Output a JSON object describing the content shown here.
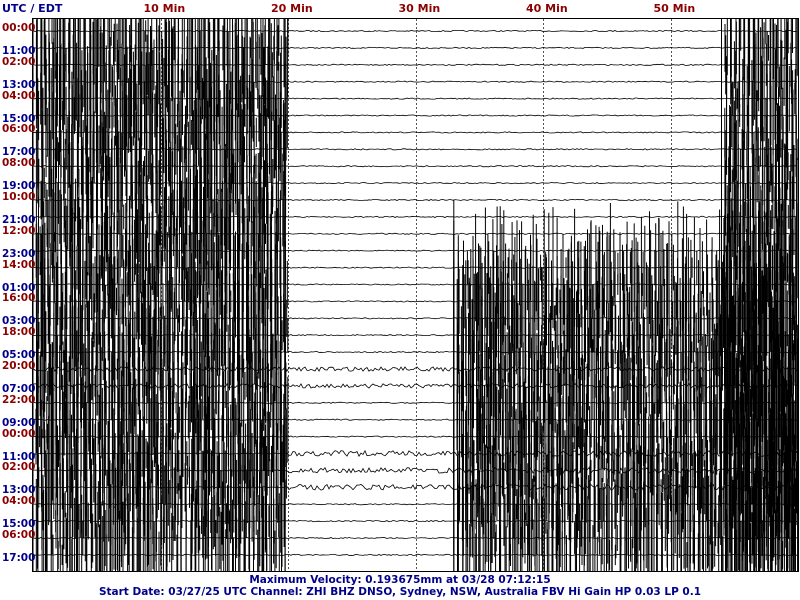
{
  "header": {
    "timezone_label": "UTC / EDT",
    "minute_labels": [
      "10 Min",
      "20 Min",
      "30 Min",
      "40 Min",
      "50 Min"
    ]
  },
  "colors": {
    "trace": "#000000",
    "utc_text": "#8b0000",
    "local_text": "#00008b",
    "footer_text": "#00008b",
    "grid": "#555555",
    "frame": "#000000"
  },
  "time_labels": [
    {
      "utc": "00:00",
      "local": "11:00"
    },
    {
      "utc": "02:00",
      "local": "13:00"
    },
    {
      "utc": "04:00",
      "local": "15:00"
    },
    {
      "utc": "06:00",
      "local": "17:00"
    },
    {
      "utc": "08:00",
      "local": "19:00"
    },
    {
      "utc": "10:00",
      "local": "21:00"
    },
    {
      "utc": "12:00",
      "local": "23:00"
    },
    {
      "utc": "14:00",
      "local": "01:00"
    },
    {
      "utc": "16:00",
      "local": "03:00"
    },
    {
      "utc": "18:00",
      "local": "05:00"
    },
    {
      "utc": "20:00",
      "local": "07:00"
    },
    {
      "utc": "22:00",
      "local": "09:00"
    },
    {
      "utc": "00:00",
      "local": "11:00"
    },
    {
      "utc": "02:00",
      "local": "13:00"
    },
    {
      "utc": "04:00",
      "local": "15:00"
    },
    {
      "utc": "06:00",
      "local": "17:00"
    }
  ],
  "footer": {
    "line1": "Maximum Velocity: 0.193675mm at 03/28 07:12:15",
    "line2": "Start Date: 03/27/25 UTC Channel: ZHI  BHZ  DNSO, Sydney, NSW, Australia  FBV Hi Gain HP 0.03  LP 0.1"
  },
  "chart_data": {
    "type": "line",
    "description": "Helicorder seismogram: 32 hourly traces, 60 minutes per trace",
    "x_units": "minutes",
    "xlim": [
      0,
      60
    ],
    "trace_count": 32,
    "grid_minutes": [
      10,
      20,
      30,
      40,
      50
    ],
    "saturated_segments": [
      {
        "trace_start": 0,
        "trace_end": 31,
        "minute_start": 0,
        "minute_end": 20
      },
      {
        "trace_start": 14,
        "trace_end": 31,
        "minute_start": 33,
        "minute_end": 60
      },
      {
        "trace_start": 0,
        "trace_end": 31,
        "minute_start": 54,
        "minute_end": 60
      }
    ]
  }
}
